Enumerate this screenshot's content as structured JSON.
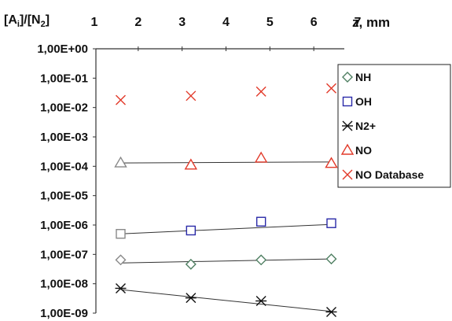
{
  "chart_data": {
    "type": "scatter",
    "title": "",
    "xlabel": "z, mm",
    "ylabel_parts": {
      "open": "[A",
      "sub1": "i",
      "mid": "]/[N",
      "sub2": "2",
      "close": "]"
    },
    "xlim": [
      1,
      7
    ],
    "x_ticks": [
      1,
      2,
      3,
      4,
      5,
      6,
      7
    ],
    "x_axis_position": "top",
    "y_scale": "log",
    "ylim": [
      1e-09,
      1
    ],
    "y_ticks": [
      1,
      0.1,
      0.01,
      0.001,
      0.0001,
      1e-05,
      1e-06,
      1e-07,
      1e-08,
      1e-09
    ],
    "y_tick_labels": [
      "1,00E+00",
      "1,00E-01",
      "1,00E-02",
      "1,00E-03",
      "1,00E-04",
      "1,00E-05",
      "1,00E-06",
      "1,00E-07",
      "1,00E-08",
      "1,00E-09"
    ],
    "grid": false,
    "legend_position": "right",
    "series": [
      {
        "name": "NH",
        "marker": "diamond",
        "color": "#4f7f62",
        "x": [
          1.6,
          3.2,
          4.8,
          6.4
        ],
        "y": [
          6.5e-08,
          4.6e-08,
          6.5e-08,
          7e-08
        ],
        "trend": {
          "x": [
            1.6,
            6.4
          ],
          "y": [
            5.1e-08,
            7e-08
          ]
        }
      },
      {
        "name": "OH",
        "marker": "square",
        "color": "#2a2aa8",
        "x": [
          1.6,
          3.2,
          4.8,
          6.4
        ],
        "y": [
          5e-07,
          6.5e-07,
          1.3e-06,
          1.15e-06
        ],
        "trend": {
          "x": [
            1.6,
            6.4
          ],
          "y": [
            5e-07,
            1.05e-06
          ]
        }
      },
      {
        "name": "N2+",
        "marker": "asterisk",
        "color": "#111111",
        "x": [
          1.6,
          3.2,
          4.8,
          6.4
        ],
        "y": [
          7e-09,
          3.3e-09,
          2.6e-09,
          1.1e-09
        ],
        "trend": {
          "x": [
            1.6,
            6.4
          ],
          "y": [
            6.3e-09,
            1.15e-09
          ]
        }
      },
      {
        "name": "NO",
        "marker": "triangle",
        "color": "#e23a2a",
        "x": [
          1.6,
          3.2,
          4.8,
          6.4
        ],
        "y": [
          0.00013,
          0.00011,
          0.00019,
          0.000125
        ],
        "trend": {
          "x": [
            1.6,
            6.4
          ],
          "y": [
            0.00013,
            0.00014
          ]
        }
      },
      {
        "name": "NO Database",
        "marker": "x",
        "color": "#e23a2a",
        "x": [
          1.6,
          3.2,
          4.8,
          6.4
        ],
        "y": [
          0.018,
          0.025,
          0.035,
          0.045
        ]
      }
    ],
    "first_point_style": {
      "color": "#888888",
      "fill": "#ffffff"
    }
  }
}
